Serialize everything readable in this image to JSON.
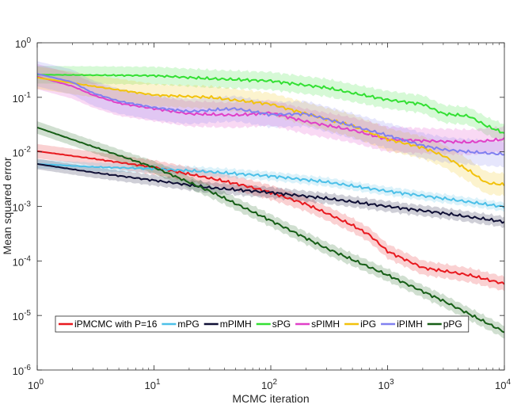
{
  "chart_data": {
    "type": "line",
    "title": "",
    "xlabel": "MCMC iteration",
    "ylabel": "Mean squared error",
    "xscale": "log",
    "yscale": "log",
    "xlim": [
      1,
      10000
    ],
    "ylim": [
      1e-06,
      1
    ],
    "x_ticks": [
      {
        "value": 1,
        "base": "10",
        "exp": "0"
      },
      {
        "value": 10,
        "base": "10",
        "exp": "1"
      },
      {
        "value": 100,
        "base": "10",
        "exp": "2"
      },
      {
        "value": 1000,
        "base": "10",
        "exp": "3"
      },
      {
        "value": 10000,
        "base": "10",
        "exp": "4"
      }
    ],
    "y_ticks": [
      {
        "value": 1,
        "base": "10",
        "exp": "0"
      },
      {
        "value": 0.1,
        "base": "10",
        "exp": "-1"
      },
      {
        "value": 0.01,
        "base": "10",
        "exp": "-2"
      },
      {
        "value": 0.001,
        "base": "10",
        "exp": "-3"
      },
      {
        "value": 0.0001,
        "base": "10",
        "exp": "-4"
      },
      {
        "value": 1e-05,
        "base": "10",
        "exp": "-5"
      },
      {
        "value": 1e-06,
        "base": "10",
        "exp": "-6"
      }
    ],
    "legend_position": "lower-left",
    "series": [
      {
        "name": "iPMCMC with P=16",
        "color": "#e8191f",
        "band_factor": 1.35,
        "x": [
          1,
          3,
          10,
          30,
          60,
          100,
          200,
          300,
          500,
          700,
          1000,
          2000,
          5000,
          10000
        ],
        "values": [
          0.0103,
          0.0075,
          0.0052,
          0.0033,
          0.0024,
          0.0018,
          0.0011,
          0.00075,
          0.00045,
          0.0003,
          0.00015,
          7.5e-05,
          5.5e-05,
          3.8e-05
        ]
      },
      {
        "name": "mPG",
        "color": "#4cc0e8",
        "band_factor": 1.2,
        "x": [
          1,
          3,
          10,
          30,
          100,
          300,
          1000,
          3000,
          10000
        ],
        "values": [
          0.006,
          0.0053,
          0.0049,
          0.0043,
          0.0036,
          0.0028,
          0.0019,
          0.0014,
          0.00098
        ]
      },
      {
        "name": "mPIMH",
        "color": "#0f0f35",
        "band_factor": 1.25,
        "x": [
          1,
          3,
          10,
          30,
          100,
          300,
          1000,
          3000,
          10000
        ],
        "values": [
          0.006,
          0.0042,
          0.003,
          0.0022,
          0.0018,
          0.0014,
          0.001,
          0.00075,
          0.00052
        ]
      },
      {
        "name": "sPG",
        "color": "#33e033",
        "band_factor": 1.45,
        "x": [
          1,
          10,
          30,
          100,
          300,
          500,
          1000,
          2000,
          3000,
          5000,
          7000,
          10000
        ],
        "values": [
          0.26,
          0.25,
          0.22,
          0.2,
          0.15,
          0.12,
          0.09,
          0.075,
          0.05,
          0.045,
          0.03,
          0.022
        ]
      },
      {
        "name": "sPIMH",
        "color": "#e040c8",
        "band_factor": 1.7,
        "x": [
          1,
          2,
          3,
          5,
          10,
          20,
          50,
          100,
          200,
          500,
          1000,
          2000,
          5000,
          10000
        ],
        "values": [
          0.24,
          0.16,
          0.11,
          0.078,
          0.062,
          0.05,
          0.047,
          0.052,
          0.036,
          0.025,
          0.017,
          0.016,
          0.015,
          0.017
        ]
      },
      {
        "name": "iPG",
        "color": "#f2c20c",
        "band_factor": 1.6,
        "x": [
          1,
          3,
          10,
          30,
          100,
          200,
          500,
          1000,
          2000,
          3000,
          5000,
          7000,
          10000
        ],
        "values": [
          0.23,
          0.16,
          0.11,
          0.1,
          0.075,
          0.05,
          0.03,
          0.017,
          0.012,
          0.0085,
          0.0045,
          0.0027,
          0.0025
        ]
      },
      {
        "name": "iPIMH",
        "color": "#8080f0",
        "band_factor": 1.7,
        "x": [
          1,
          2,
          3,
          5,
          10,
          20,
          50,
          100,
          200,
          500,
          1000,
          2000,
          3000,
          5000,
          10000
        ],
        "values": [
          0.27,
          0.19,
          0.12,
          0.085,
          0.065,
          0.055,
          0.062,
          0.048,
          0.05,
          0.03,
          0.02,
          0.013,
          0.011,
          0.01,
          0.009
        ]
      },
      {
        "name": "pPG",
        "color": "#165e16",
        "band_factor": 1.3,
        "x": [
          1,
          3,
          10,
          30,
          100,
          300,
          1000,
          3000,
          10000
        ],
        "values": [
          0.028,
          0.0125,
          0.0052,
          0.0019,
          0.00055,
          0.00017,
          5.5e-05,
          1.85e-05,
          5e-06
        ]
      }
    ]
  }
}
